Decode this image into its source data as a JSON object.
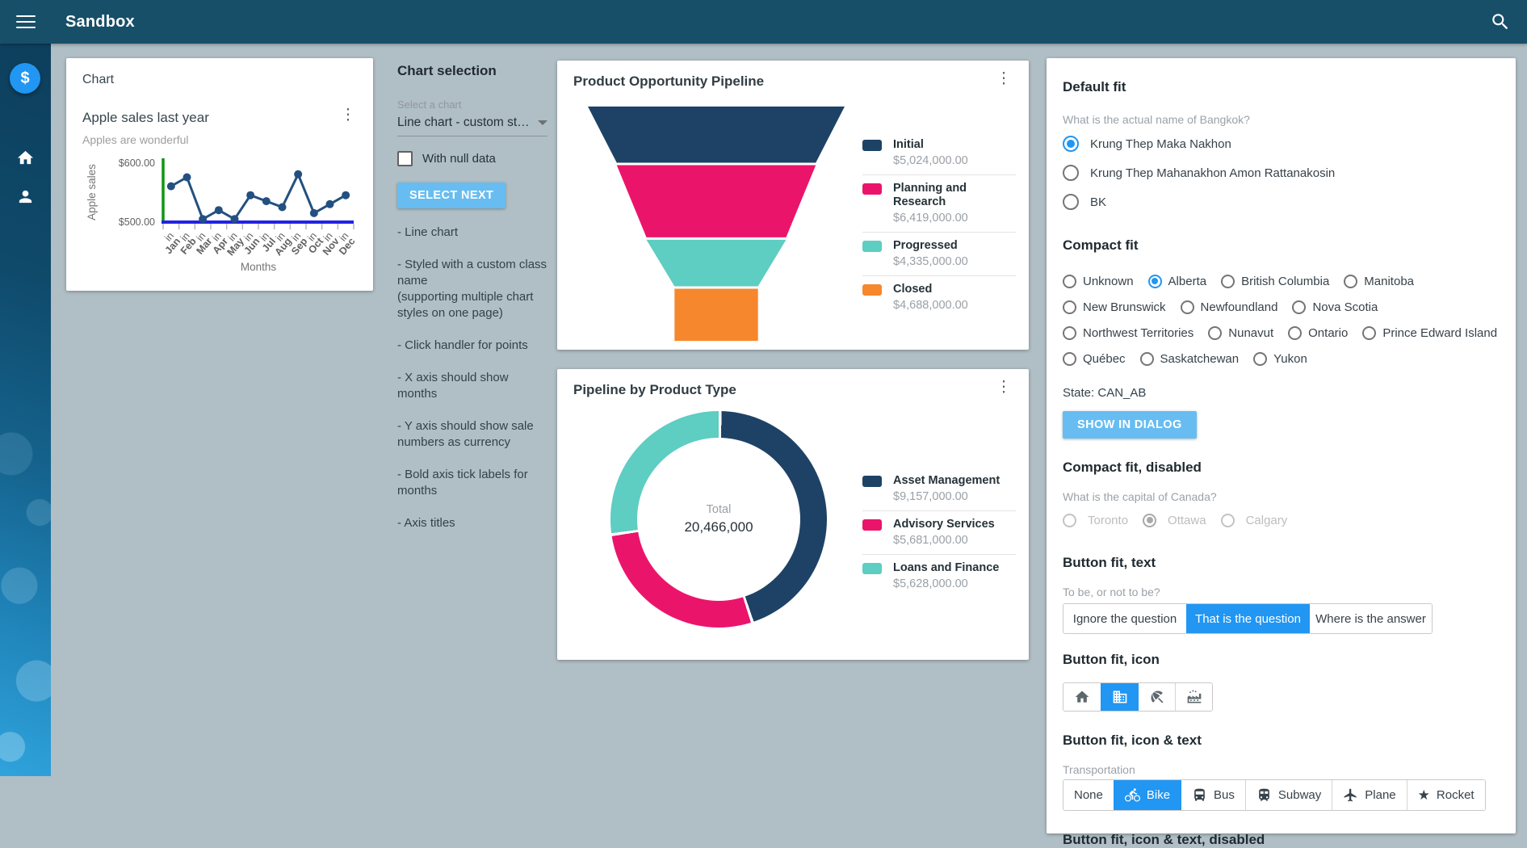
{
  "navbar": {
    "title": "Sandbox"
  },
  "colors": {
    "navbar_bg": "#174f69",
    "accent_blue": "#2196F3",
    "light_button_blue": "#67bdf1",
    "chart_navy": "#1e4266",
    "chart_pink": "#eb146b",
    "chart_teal": "#5ecdc2",
    "chart_orange": "#f6872d"
  },
  "sidebar": {
    "items": [
      "dollar",
      "home",
      "person"
    ]
  },
  "chart_card": {
    "header": "Chart",
    "title": "Apple sales last year",
    "subtitle": "Apples are wonderful"
  },
  "chart_selection": {
    "title": "Chart selection",
    "select_label": "Select a chart",
    "select_value": "Line chart - custom st…",
    "checkbox_label": "With null data",
    "next_button": "SELECT NEXT",
    "notes": [
      "- Line chart",
      "- Styled with a custom class name\n(supporting multiple chart styles on one page)",
      "- Click handler for points",
      "- X axis should show months",
      "- Y axis should show sale numbers as currency",
      "- Bold axis tick labels for months",
      "- Axis titles"
    ]
  },
  "funnel_card": {
    "title": "Product Opportunity Pipeline"
  },
  "donut_card": {
    "title": "Pipeline by Product Type"
  },
  "default_fit": {
    "title": "Default fit",
    "question": "What is the actual name of Bangkok?",
    "options": [
      {
        "label": "Krung Thep Maka Nakhon",
        "selected": true
      },
      {
        "label": "Krung Thep Mahanakhon Amon Rattanakosin",
        "selected": false
      },
      {
        "label": "BK",
        "selected": false
      }
    ]
  },
  "compact_fit": {
    "title": "Compact fit",
    "options": [
      {
        "label": "Unknown",
        "selected": false
      },
      {
        "label": "Alberta",
        "selected": true
      },
      {
        "label": "British Columbia",
        "selected": false
      },
      {
        "label": "Manitoba",
        "selected": false
      },
      {
        "label": "New Brunswick",
        "selected": false
      },
      {
        "label": "Newfoundland",
        "selected": false
      },
      {
        "label": "Nova Scotia",
        "selected": false
      },
      {
        "label": "Northwest Territories",
        "selected": false
      },
      {
        "label": "Nunavut",
        "selected": false
      },
      {
        "label": "Ontario",
        "selected": false
      },
      {
        "label": "Prince Edward Island",
        "selected": false
      },
      {
        "label": "Québec",
        "selected": false
      },
      {
        "label": "Saskatchewan",
        "selected": false
      },
      {
        "label": "Yukon",
        "selected": false
      }
    ],
    "state_text": "State: CAN_AB",
    "dialog_button": "SHOW IN DIALOG"
  },
  "compact_fit_disabled": {
    "title": "Compact fit, disabled",
    "question": "What is the capital of Canada?",
    "options": [
      {
        "label": "Toronto",
        "selected": false
      },
      {
        "label": "Ottawa",
        "selected": true
      },
      {
        "label": "Calgary",
        "selected": false
      }
    ]
  },
  "button_fit_text": {
    "title": "Button fit, text",
    "question": "To be, or not to be?",
    "options": [
      {
        "label": "Ignore the question",
        "selected": false
      },
      {
        "label": "That is the question",
        "selected": true
      },
      {
        "label": "Where is the answer",
        "selected": false
      }
    ]
  },
  "button_fit_icon": {
    "title": "Button fit, icon",
    "options": [
      {
        "icon": "home-icon",
        "selected": false
      },
      {
        "icon": "office-building-icon",
        "selected": true
      },
      {
        "icon": "beach-umbrella-icon",
        "selected": false
      },
      {
        "icon": "factory-icon",
        "selected": false
      }
    ]
  },
  "button_fit_icon_text": {
    "title": "Button fit, icon & text",
    "question": "Transportation",
    "options": [
      {
        "label": "None",
        "icon": null,
        "selected": false
      },
      {
        "label": "Bike",
        "icon": "bike-icon",
        "selected": true
      },
      {
        "label": "Bus",
        "icon": "bus-icon",
        "selected": false
      },
      {
        "label": "Subway",
        "icon": "subway-icon",
        "selected": false
      },
      {
        "label": "Plane",
        "icon": "plane-icon",
        "selected": false
      },
      {
        "label": "Rocket",
        "icon": "star-icon",
        "selected": false
      }
    ]
  },
  "button_fit_icon_text_disabled": {
    "title": "Button fit, icon & text, disabled"
  },
  "chart_data": [
    {
      "id": "apple_sales",
      "type": "line",
      "title": "Apple sales last year",
      "subtitle": "Apples are wonderful",
      "x": [
        "Jan",
        "Feb",
        "Mar",
        "Apr",
        "May",
        "Jun",
        "Jul",
        "Aug",
        "Sep",
        "Oct",
        "Nov",
        "Dec"
      ],
      "tick_prefix": "in",
      "values": [
        560,
        575,
        505,
        520,
        505,
        545,
        535,
        525,
        580,
        515,
        530,
        545
      ],
      "xlabel": "Months",
      "ylabel": "Apple sales",
      "ylim": [
        500,
        600
      ],
      "yticks": [
        "$500.00",
        "$600.00"
      ],
      "ytick_format": "currency",
      "line_color": "#235080",
      "axis_x_color": "#2222e6",
      "axis_y_color": "#0f9614",
      "grid": false
    },
    {
      "id": "product_opportunity_pipeline",
      "type": "funnel",
      "title": "Product Opportunity Pipeline",
      "segments": [
        {
          "label": "Initial",
          "value": 5024000,
          "display": "$5,024,000.00",
          "color": "#1e4266"
        },
        {
          "label": "Planning and Research",
          "value": 6419000,
          "display": "$6,419,000.00",
          "color": "#eb146b"
        },
        {
          "label": "Progressed",
          "value": 4335000,
          "display": "$4,335,000.00",
          "color": "#5ecdc2"
        },
        {
          "label": "Closed",
          "value": 4688000,
          "display": "$4,688,000.00",
          "color": "#f6872d"
        }
      ],
      "legend_position": "right"
    },
    {
      "id": "pipeline_by_product_type",
      "type": "donut",
      "title": "Pipeline by Product Type",
      "center_label": "Total",
      "center_value": "20,466,000",
      "total": 20466000,
      "segments": [
        {
          "label": "Asset Management",
          "value": 9157000,
          "display": "$9,157,000.00",
          "color": "#1e4266"
        },
        {
          "label": "Advisory Services",
          "value": 5681000,
          "display": "$5,681,000.00",
          "color": "#eb146b"
        },
        {
          "label": "Loans and Finance",
          "value": 5628000,
          "display": "$5,628,000.00",
          "color": "#5ecdc2"
        }
      ],
      "legend_position": "right"
    }
  ]
}
